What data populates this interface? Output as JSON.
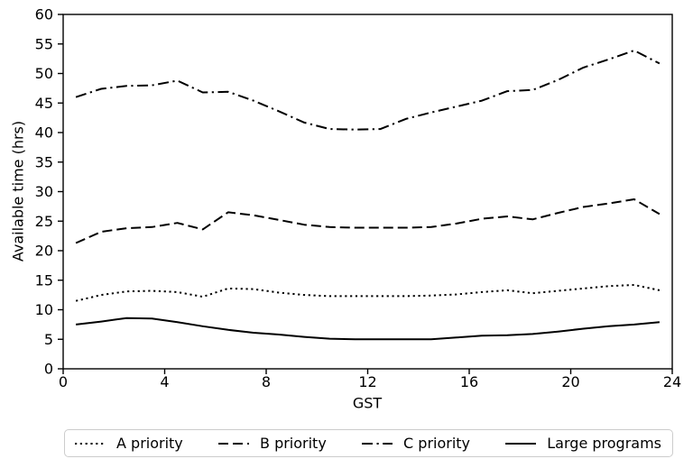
{
  "chart_data": {
    "type": "line",
    "title": "",
    "xlabel": "GST",
    "ylabel": "Available time (hrs)",
    "xlim": [
      0,
      24
    ],
    "ylim": [
      0,
      60
    ],
    "xticks": [
      0,
      4,
      8,
      12,
      16,
      20,
      24
    ],
    "yticks": [
      0,
      5,
      10,
      15,
      20,
      25,
      30,
      35,
      40,
      45,
      50,
      55,
      60
    ],
    "grid": false,
    "legend_position": "bottom",
    "line_color": "#000000",
    "background_color": "#ffffff",
    "x": [
      0.5,
      1.5,
      2.5,
      3.5,
      4.5,
      5.5,
      6.5,
      7.5,
      8.5,
      9.5,
      10.5,
      11.5,
      12.5,
      13.5,
      14.5,
      15.5,
      16.5,
      17.5,
      18.5,
      19.5,
      20.5,
      21.5,
      22.5,
      23.5
    ],
    "series": [
      {
        "name": "A priority",
        "style": "dotted",
        "values": [
          11.5,
          12.5,
          13.1,
          13.2,
          13.0,
          12.2,
          13.6,
          13.5,
          12.9,
          12.5,
          12.3,
          12.3,
          12.3,
          12.3,
          12.4,
          12.6,
          13.0,
          13.3,
          12.8,
          13.2,
          13.6,
          14.0,
          14.2,
          13.3
        ]
      },
      {
        "name": "B priority",
        "style": "dashed",
        "values": [
          21.3,
          23.2,
          23.8,
          24.0,
          24.7,
          23.6,
          26.5,
          26.0,
          25.2,
          24.4,
          24.0,
          23.9,
          23.9,
          23.9,
          24.0,
          24.6,
          25.4,
          25.8,
          25.3,
          26.4,
          27.4,
          28.0,
          28.7,
          26.2
        ]
      },
      {
        "name": "C priority",
        "style": "dashdot",
        "values": [
          46.0,
          47.4,
          47.9,
          48.0,
          48.8,
          46.8,
          46.9,
          45.4,
          43.6,
          41.7,
          40.6,
          40.5,
          40.6,
          42.3,
          43.4,
          44.4,
          45.4,
          47.0,
          47.2,
          48.9,
          51.0,
          52.4,
          53.9,
          51.7
        ]
      },
      {
        "name": "Large programs",
        "style": "solid",
        "values": [
          7.5,
          8.0,
          8.6,
          8.5,
          7.9,
          7.2,
          6.6,
          6.1,
          5.8,
          5.4,
          5.1,
          5.0,
          5.0,
          5.0,
          5.0,
          5.3,
          5.6,
          5.7,
          5.9,
          6.3,
          6.8,
          7.2,
          7.5,
          7.9
        ]
      }
    ]
  }
}
